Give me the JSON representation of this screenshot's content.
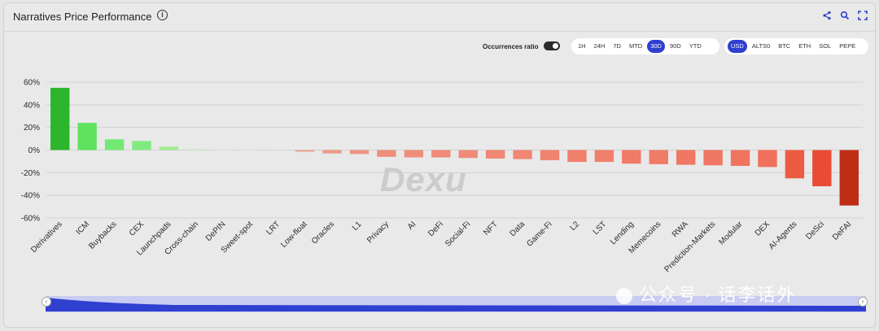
{
  "header": {
    "title": "Narratives Price Performance"
  },
  "controls": {
    "occurrences_label": "Occurrences ratio",
    "time_options": [
      "1H",
      "24H",
      "7D",
      "MTD",
      "30D",
      "90D",
      "YTD"
    ],
    "time_selected": "30D",
    "currency_options": [
      "USD",
      "ALTS0",
      "BTC",
      "ETH",
      "SOL",
      "PEPE"
    ],
    "currency_selected": "USD"
  },
  "watermark": {
    "text": "Dexu",
    "caption": "公众号 · 话李话外"
  },
  "chart_data": {
    "type": "bar",
    "categories": [
      "Derivatives",
      "ICM",
      "Buybacks",
      "CEX",
      "Launchpads",
      "Cross-chain",
      "DePIN",
      "Sweet-spot",
      "LRT",
      "Low-float",
      "Oracles",
      "L1",
      "Privacy",
      "AI",
      "DeFi",
      "Social-Fi",
      "NFT",
      "Data",
      "Game-Fi",
      "L2",
      "LST",
      "Lending",
      "Memecoins",
      "RWA",
      "Prediction-Markets",
      "Modular",
      "DEX",
      "AI-Agents",
      "DeSci",
      "DeFAI"
    ],
    "values": [
      55,
      24,
      9.5,
      8,
      3,
      0.8,
      0.5,
      0.3,
      -0.3,
      -1.5,
      -3,
      -3.5,
      -6,
      -6.5,
      -6.5,
      -7,
      -7.5,
      -8,
      -9,
      -10.5,
      -10.5,
      -12,
      -12.5,
      -13,
      -13.5,
      -14,
      -15,
      -25,
      -32,
      -49
    ],
    "colors": [
      "#2db52d",
      "#5fe35f",
      "#74e874",
      "#7fea7f",
      "#a0ec8e",
      "#c8efc0",
      "#d6efd0",
      "#dbeed6",
      "#e7e1de",
      "#eaa596",
      "#ec9a88",
      "#ed9483",
      "#ef8e7b",
      "#ef8e7b",
      "#ef8b78",
      "#ef8b78",
      "#ef8773",
      "#ef8773",
      "#f0836f",
      "#f07f6b",
      "#f07f6b",
      "#f07b66",
      "#f07b66",
      "#f07763",
      "#f07763",
      "#f07460",
      "#f0705b",
      "#ec5c42",
      "#e84c34",
      "#bf2d17"
    ],
    "yticks": [
      "60%",
      "40%",
      "20%",
      "0%",
      "-20%",
      "-40%",
      "-60%"
    ],
    "ylim": [
      -60,
      60
    ],
    "grid": true
  }
}
